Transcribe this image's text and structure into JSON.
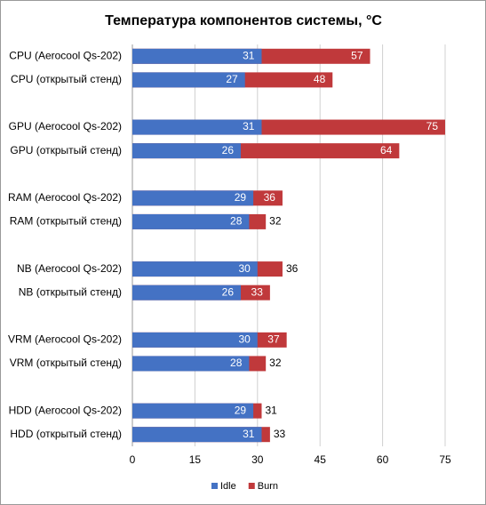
{
  "chart_data": {
    "type": "bar",
    "orientation": "horizontal",
    "overlap": true,
    "title": "Температура компонентов системы, °C",
    "categories": [
      "CPU (Aerocool Qs-202)",
      "CPU (открытый стенд)",
      null,
      "GPU (Aerocool Qs-202)",
      "GPU (открытый стенд)",
      null,
      "RAM (Aerocool Qs-202)",
      "RAM (открытый стенд)",
      null,
      "NB (Aerocool Qs-202)",
      "NB (открытый стенд)",
      null,
      "VRM (Aerocool Qs-202)",
      "VRM (открытый стенд)",
      null,
      "HDD (Aerocool Qs-202)",
      "HDD (открытый стенд)"
    ],
    "series": [
      {
        "name": "Idle",
        "color": "#4472c4",
        "values": [
          31,
          27,
          null,
          31,
          26,
          null,
          29,
          28,
          null,
          30,
          26,
          null,
          30,
          28,
          null,
          29,
          31
        ]
      },
      {
        "name": "Burn",
        "color": "#c0393b",
        "values": [
          57,
          48,
          null,
          75,
          64,
          null,
          36,
          32,
          null,
          36,
          33,
          null,
          37,
          32,
          null,
          31,
          33
        ]
      }
    ],
    "xlim": [
      0,
      75
    ],
    "xticks": [
      0,
      15,
      30,
      45,
      60,
      75
    ],
    "grid": true,
    "legend": "bottom"
  }
}
